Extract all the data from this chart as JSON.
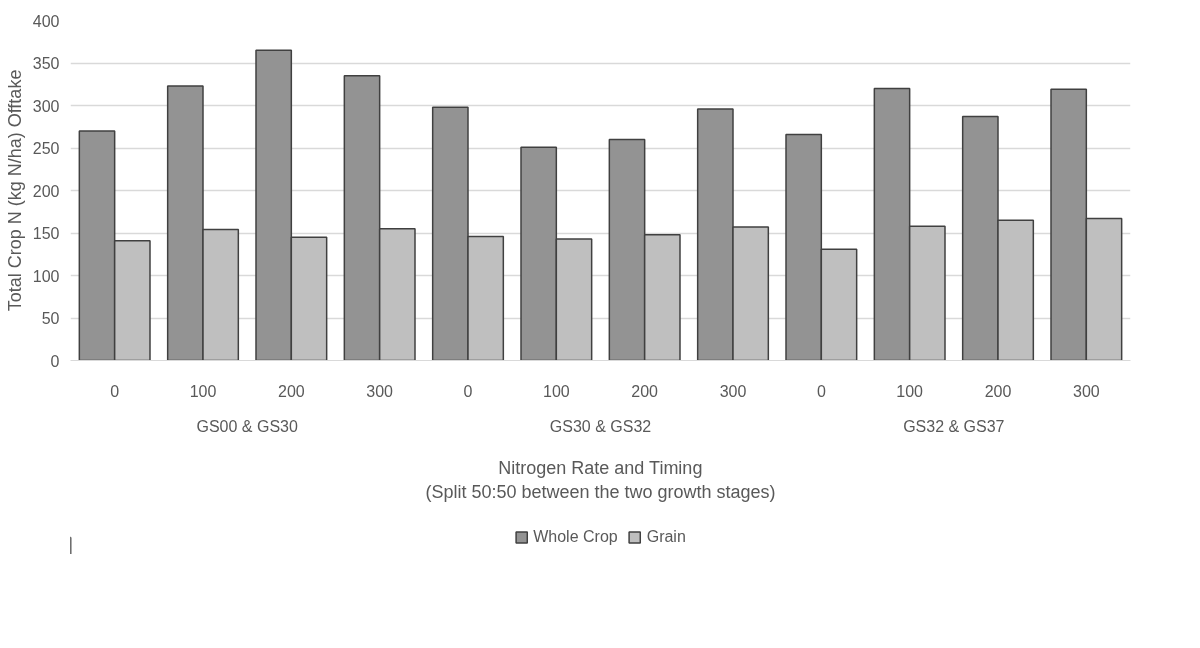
{
  "chart_data": {
    "type": "bar",
    "xlabel": "Nitrogen Rate and Timing\n(Split 50:50 between the two growth stages)",
    "ylabel": "Total Crop N (kg N/ha) Offtake",
    "categories": [
      "0",
      "100",
      "200",
      "300",
      "0",
      "100",
      "200",
      "300",
      "0",
      "100",
      "200",
      "300"
    ],
    "annotations": [
      "GS00 & GS30",
      "GS30 & GS32",
      "GS32 & GS37"
    ],
    "series": [
      {
        "name": "Whole Crop",
        "color": "#939393",
        "values": [
          270,
          323,
          365,
          335,
          298,
          251,
          260,
          296,
          266,
          320,
          287,
          319
        ]
      },
      {
        "name": "Grain",
        "color": "#bfbfbf",
        "values": [
          141,
          154,
          145,
          155,
          146,
          143,
          148,
          157,
          131,
          158,
          165,
          167
        ]
      }
    ],
    "ylim": [
      0,
      400
    ],
    "yticks": [
      0,
      50,
      100,
      150,
      200,
      250,
      300,
      350,
      400
    ],
    "grid": "y",
    "legend": "bottom"
  }
}
